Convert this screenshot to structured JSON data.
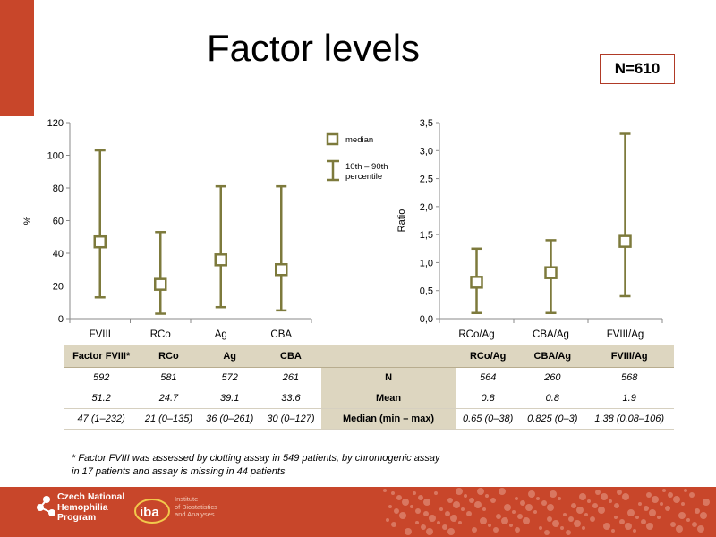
{
  "title": "Factor levels",
  "n_badge": "N=610",
  "legend": {
    "median": "median",
    "range_line1": "10th – 90th",
    "range_line2": "percentile"
  },
  "chart_data": [
    {
      "type": "box",
      "ylabel": "%",
      "ylim": [
        0,
        120
      ],
      "yticks": [
        0,
        20,
        40,
        60,
        80,
        100,
        120
      ],
      "ytick_labels": [
        "0",
        "20",
        "40",
        "60",
        "80",
        "100",
        "120"
      ],
      "categories": [
        "FVIII",
        "RCo",
        "Ag",
        "CBA"
      ],
      "series": [
        {
          "name": "median",
          "values": [
            47,
            21,
            36,
            30
          ]
        },
        {
          "name": "10th – 90th percentile",
          "low": [
            13,
            3,
            7,
            5
          ],
          "high": [
            103,
            53,
            81,
            81
          ]
        }
      ]
    },
    {
      "type": "box",
      "ylabel": "Ratio",
      "ylim": [
        0,
        3.5
      ],
      "yticks": [
        0,
        0.5,
        1.0,
        1.5,
        2.0,
        2.5,
        3.0,
        3.5
      ],
      "ytick_labels": [
        "0,0",
        "0,5",
        "1,0",
        "1,5",
        "2,0",
        "2,5",
        "3,0",
        "3,5"
      ],
      "categories": [
        "RCo/Ag",
        "CBA/Ag",
        "FVIII/Ag"
      ],
      "series": [
        {
          "name": "median",
          "values": [
            0.65,
            0.82,
            1.38
          ]
        },
        {
          "name": "10th – 90th percentile",
          "low": [
            0.1,
            0.1,
            0.4
          ],
          "high": [
            1.25,
            1.4,
            3.3
          ]
        }
      ]
    }
  ],
  "table": {
    "headers": [
      "Factor FVIII*",
      "RCo",
      "Ag",
      "CBA",
      "",
      "RCo/Ag",
      "CBA/Ag",
      "FVIII/Ag"
    ],
    "rows": [
      [
        "592",
        "581",
        "572",
        "261",
        "N",
        "564",
        "260",
        "568"
      ],
      [
        "51.2",
        "24.7",
        "39.1",
        "33.6",
        "Mean",
        "0.8",
        "0.8",
        "1.9"
      ],
      [
        "47 (1–232)",
        "21 (0–135)",
        "36 (0–261)",
        "30 (0–127)",
        "Median (min – max)",
        "0.65 (0–38)",
        "0.825 (0–3)",
        "1.38 (0.08–106)"
      ]
    ]
  },
  "footnote": "* Factor FVIII was assessed by clotting assay in 549 patients, by chromogenic assay in 17 patients and assay is missing in 44 patients",
  "footer": {
    "logo1_lines": [
      "Czech National",
      "Hemophilia",
      "Program"
    ],
    "logo2_mark": "iba",
    "logo2_lines": [
      "Institute",
      "of Biostatistics",
      "and Analyses"
    ]
  },
  "colors": {
    "accent": "#c8462a",
    "series": "#7d7a3c",
    "table_header": "#ddd6c0"
  }
}
